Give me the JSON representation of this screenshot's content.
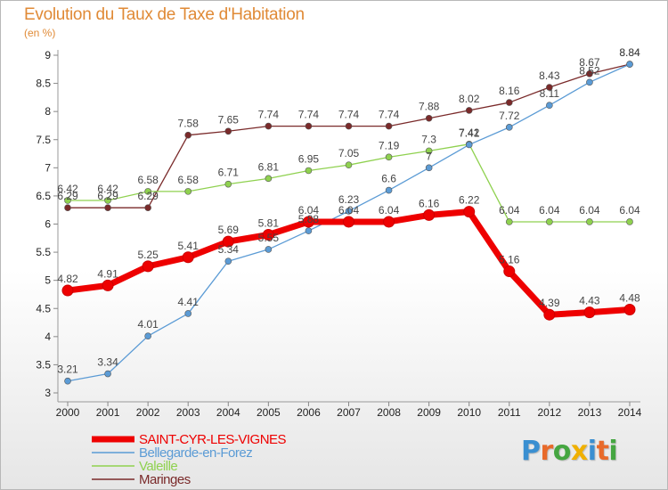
{
  "title": "Evolution du Taux de Taxe d'Habitation",
  "unit": "(en %)",
  "logo": {
    "letters": [
      "P",
      "r",
      "o",
      "x",
      "i",
      "t",
      "i"
    ],
    "colors": [
      "#3a8fd1",
      "#e86a2a",
      "#45a641",
      "#f0b000",
      "#3a8fd1",
      "#e86a2a",
      "#45a641"
    ]
  },
  "chart_data": {
    "type": "line",
    "x": [
      2000,
      2001,
      2002,
      2003,
      2004,
      2005,
      2006,
      2007,
      2008,
      2009,
      2010,
      2011,
      2012,
      2013,
      2014
    ],
    "ylim": [
      3,
      9
    ],
    "yticks": [
      3,
      3.5,
      4,
      4.5,
      5,
      5.5,
      6,
      6.5,
      7,
      7.5,
      8,
      8.5,
      9
    ],
    "grid": false,
    "legend": "bottom-left",
    "series": [
      {
        "name": "SAINT-CYR-LES-VIGNES",
        "color": "#ee0000",
        "values": [
          4.82,
          4.91,
          5.25,
          5.41,
          5.69,
          5.81,
          6.04,
          6.04,
          6.04,
          6.16,
          6.22,
          5.16,
          4.39,
          4.43,
          4.48
        ]
      },
      {
        "name": "Bellegarde-en-Forez",
        "color": "#5b9bd5",
        "values": [
          3.21,
          3.34,
          4.01,
          4.41,
          5.34,
          5.55,
          5.88,
          6.23,
          6.6,
          7.0,
          7.41,
          7.72,
          8.11,
          8.52,
          8.84
        ]
      },
      {
        "name": "Valeille",
        "color": "#8fd14f",
        "values": [
          6.42,
          6.42,
          6.58,
          6.58,
          6.71,
          6.81,
          6.95,
          7.05,
          7.19,
          7.3,
          7.42,
          6.04,
          6.04,
          6.04,
          6.04
        ]
      },
      {
        "name": "Maringes",
        "color": "#7a2a2a",
        "values": [
          6.29,
          6.29,
          6.29,
          7.58,
          7.65,
          7.74,
          7.74,
          7.74,
          7.74,
          7.88,
          8.02,
          8.16,
          8.43,
          8.67,
          8.84
        ]
      }
    ],
    "data_labels": {
      "SAINT-CYR-LES-VIGNES": [
        "4.82",
        "4.91",
        "5.25",
        "5.41",
        "5.69",
        "5.81",
        "6.04",
        "6.04",
        "6.04",
        "6.16",
        "6.22",
        "5.16",
        "4.39",
        "4.43",
        "4.48"
      ],
      "Bellegarde-en-Forez": [
        "3.21",
        "3.34",
        "4.01",
        "4.41",
        "5.34",
        "5.55",
        "5.88",
        "6.23",
        "6.6",
        "7",
        "7.41",
        "7.72",
        "8.11",
        "8.52",
        "8.84"
      ],
      "Valeille": [
        "6.42",
        "6.42",
        "6.58",
        "6.58",
        "6.71",
        "6.81",
        "6.95",
        "7.05",
        "7.19",
        "7.3",
        "7.42",
        "6.04",
        "6.04",
        "6.04",
        "6.04"
      ],
      "Maringes": [
        "6.29",
        "6.29",
        "6.29",
        "7.58",
        "7.65",
        "7.74",
        "7.74",
        "7.74",
        "7.74",
        "7.88",
        "8.02",
        "8.16",
        "8.43",
        "8.67",
        "8.84"
      ]
    }
  }
}
